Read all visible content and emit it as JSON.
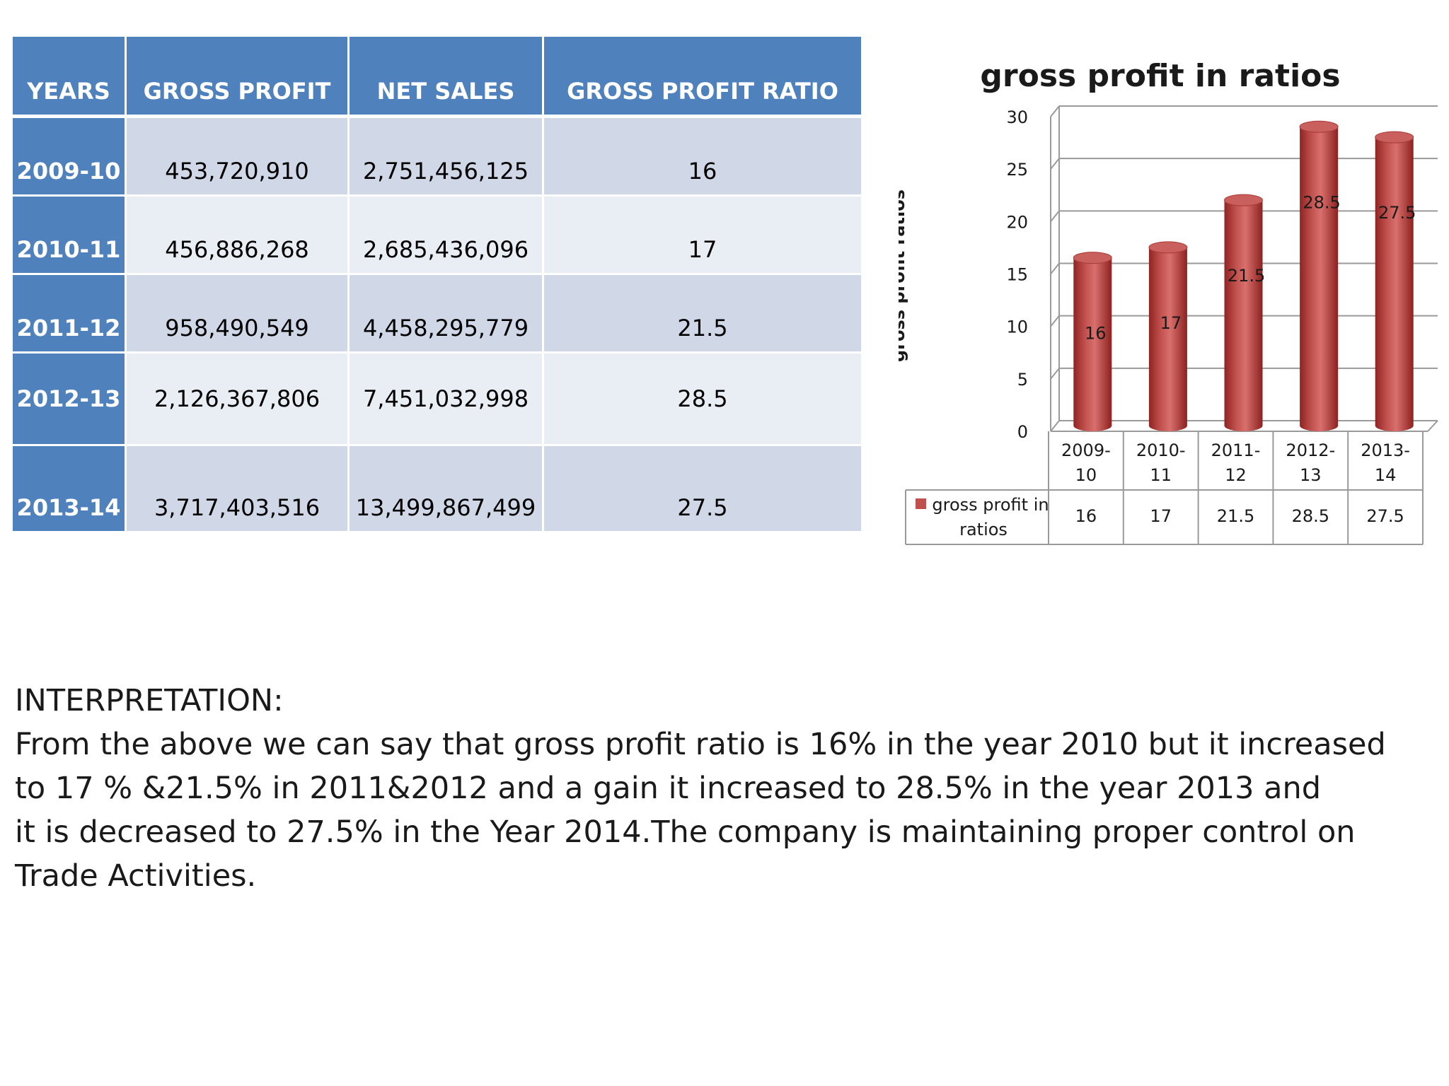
{
  "table": {
    "headers": [
      "YEARS",
      "GROSS PROFIT",
      "NET SALES",
      "GROSS PROFIT RATIO"
    ],
    "rows": [
      {
        "year": "2009-10",
        "gross_profit": "453,720,910",
        "net_sales": "2,751,456,125",
        "ratio": "16"
      },
      {
        "year": "2010-11",
        "gross_profit": "456,886,268",
        "net_sales": "2,685,436,096",
        "ratio": "17"
      },
      {
        "year": "2011-12",
        "gross_profit": "958,490,549",
        "net_sales": "4,458,295,779",
        "ratio": "21.5"
      },
      {
        "year": "2012-13",
        "gross_profit": "2,126,367,806",
        "net_sales": "7,451,032,998",
        "ratio": "28.5"
      },
      {
        "year": "2013-14",
        "gross_profit": "3,717,403,516",
        "net_sales": "13,499,867,499",
        "ratio": "27.5"
      }
    ]
  },
  "chart_data": {
    "type": "bar",
    "title": "gross profit in ratios",
    "ylabel": "gross profit ratios",
    "xlabel": "",
    "categories": [
      [
        "2009-",
        "10"
      ],
      [
        "2010-",
        "11"
      ],
      [
        "2011-",
        "12"
      ],
      [
        "2012-",
        "13"
      ],
      [
        "2013-",
        "14"
      ]
    ],
    "series": [
      {
        "name_lines": [
          "gross profit in",
          "ratios"
        ],
        "values": [
          16,
          17,
          21.5,
          28.5,
          27.5
        ],
        "color": "#c0504d"
      }
    ],
    "data_labels": [
      "16",
      "17",
      "21.5",
      "28.5",
      "27.5"
    ],
    "ylim": [
      0,
      30
    ],
    "yticks": [
      0,
      5,
      10,
      15,
      20,
      25,
      30
    ],
    "grid": true,
    "style": "3d-cylinder",
    "legend": "bottom-data-table"
  },
  "interpretation": {
    "heading": "INTERPRETATION:",
    "lines": [
      "From the above we can say that gross profit ratio is 16%  in the year 2010 but it increased",
      "to 17 % &21.5% in 2011&2012 and a gain it increased to 28.5%  in the  year 2013 and",
      "it is decreased  to  27.5%  in  the Year 2014.The  company is  maintaining proper  control  on",
      "Trade Activities."
    ]
  }
}
